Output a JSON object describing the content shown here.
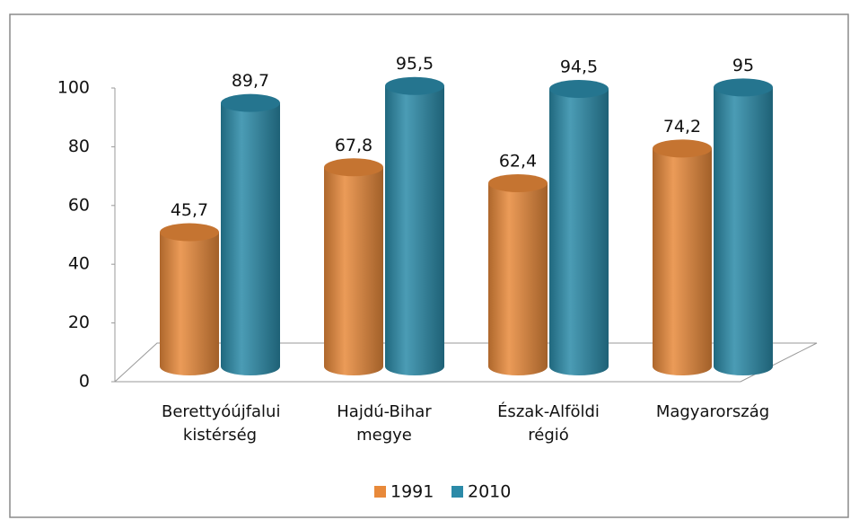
{
  "chart_data": {
    "type": "bar",
    "categories": [
      "Berettyóújfalui kistérség",
      "Hajdú-Bihar megye",
      "Észak-Alföldi régió",
      "Magyarország"
    ],
    "series": [
      {
        "name": "1991",
        "color": "#e8893a",
        "values": [
          45.7,
          67.8,
          62.4,
          74.2
        ],
        "value_labels": [
          "45,7",
          "67,8",
          "62,4",
          "74,2"
        ]
      },
      {
        "name": "2010",
        "color": "#2b8aa8",
        "values": [
          89.7,
          95.5,
          94.5,
          95
        ],
        "value_labels": [
          "89,7",
          "95,5",
          "94,5",
          "95"
        ]
      }
    ],
    "ylim": [
      0,
      100
    ],
    "yticks": [
      0,
      20,
      40,
      60,
      80,
      100
    ],
    "legend": "bottom"
  }
}
